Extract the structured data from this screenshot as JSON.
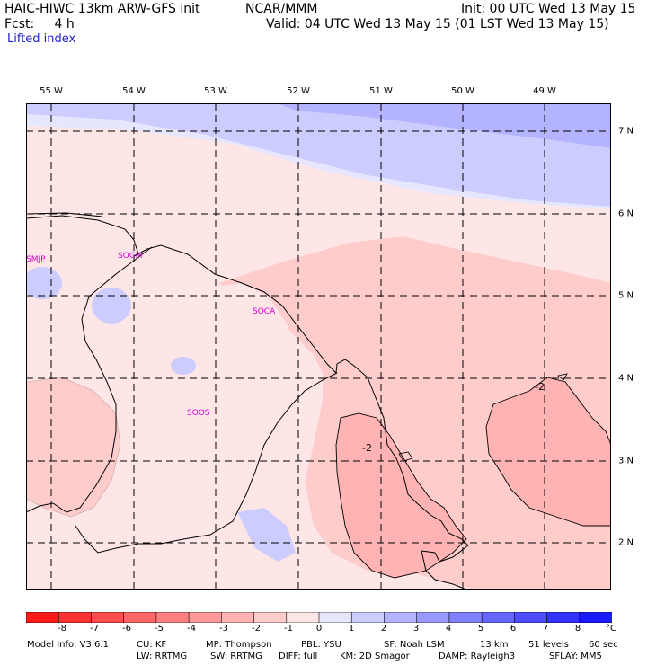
{
  "header": {
    "model": "HAIC-HIWC 13km ARW-GFS init",
    "org": "NCAR/MMM",
    "init": "Init: 00 UTC Wed 13 May 15",
    "fcst": "Fcst:     4 h",
    "valid": "Valid: 04 UTC Wed 13 May 15 (01 LST Wed 13 May 15)",
    "field": "Lifted index"
  },
  "map": {
    "lon_labels": [
      "55 W",
      "54 W",
      "53 W",
      "52 W",
      "51 W",
      "50 W",
      "49 W"
    ],
    "lat_labels": [
      "7 N",
      "6 N",
      "5 N",
      "4 N",
      "3 N",
      "2 N"
    ],
    "stations": [
      "SMJP",
      "SOGM",
      "SOCA",
      "SOOS"
    ],
    "contour_labels": [
      "-2",
      "-2",
      "-2"
    ]
  },
  "colorbar": {
    "labels": [
      "-8",
      "-7",
      "-6",
      "-5",
      "-4",
      "-3",
      "-2",
      "-1",
      "0",
      "1",
      "2",
      "3",
      "4",
      "5",
      "6",
      "7",
      "8"
    ],
    "unit": "°C",
    "colors": [
      "#ff1a1a",
      "#ff3333",
      "#ff4d4d",
      "#ff6666",
      "#ff8080",
      "#ff9999",
      "#ffb3b3",
      "#ffcccc",
      "#ffe6e6",
      "#e6e6ff",
      "#ccccff",
      "#b3b3ff",
      "#9999ff",
      "#8080ff",
      "#6666ff",
      "#4d4dff",
      "#3333ff",
      "#1a1aff"
    ]
  },
  "footer": {
    "line1": [
      "Model Info: V3.6.1",
      "CU: KF",
      "MP: Thompson",
      "PBL: YSU",
      "SF: Noah LSM",
      "13 km",
      "51 levels",
      "60 sec"
    ],
    "line2": [
      "LW: RRTMG",
      "SW: RRTMG",
      "DIFF: full",
      "KM: 2D Smagor",
      "DAMP: Rayleigh3",
      "SFLAY: MM5"
    ]
  }
}
